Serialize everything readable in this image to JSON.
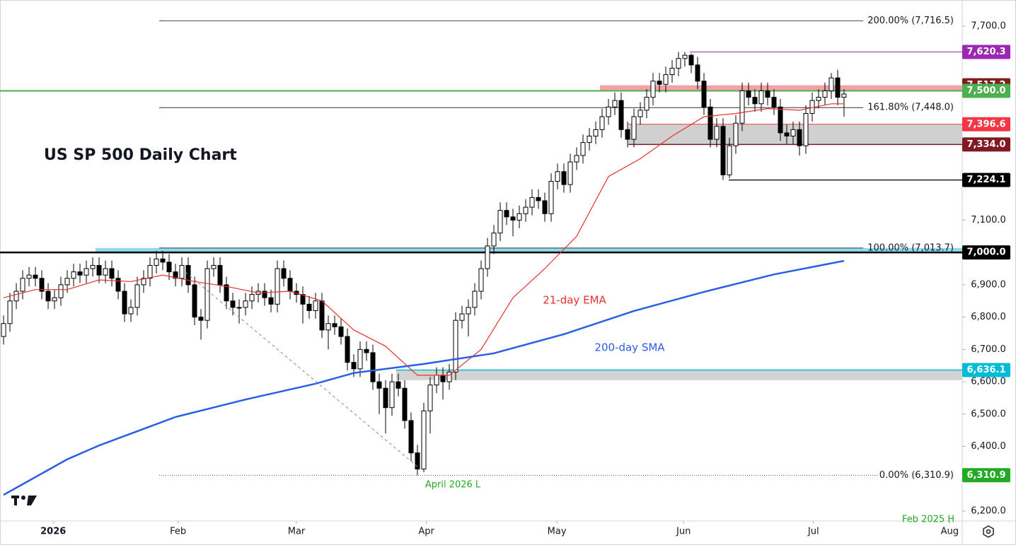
{
  "chart_data": {
    "type": "candlestick",
    "title": "US SP 500 Daily Chart",
    "up_color": "#ffffff",
    "down_color": "#000000",
    "open": [
      6740,
      6780,
      6850,
      6880,
      6920,
      6930,
      6920,
      6880,
      6850,
      6860,
      6900,
      6920,
      6940,
      6930,
      6950,
      6960,
      6930,
      6950,
      6920,
      6880,
      6810,
      6830,
      6900,
      6920,
      6960,
      6980,
      6970,
      6940,
      6920,
      6960,
      6900,
      6800,
      6790,
      6950,
      6960,
      6900,
      6850,
      6830,
      6830,
      6850,
      6870,
      6880,
      6860,
      6840,
      6950,
      6920,
      6880,
      6870,
      6840,
      6820,
      6850,
      6760,
      6780,
      6770,
      6740,
      6660,
      6640,
      6700,
      6690,
      6600,
      6580,
      6520,
      6600,
      6580,
      6480,
      6380,
      6330,
      6510,
      6590,
      6620,
      6600,
      6630,
      6790,
      6810,
      6830,
      6880,
      6950,
      7020,
      7060,
      7130,
      7110,
      7100,
      7120,
      7140,
      7170,
      7160,
      7120,
      7220,
      7250,
      7210,
      7280,
      7300,
      7340,
      7360,
      7380,
      7420,
      7450,
      7470,
      7380,
      7350,
      7420,
      7440,
      7480,
      7530,
      7520,
      7550,
      7570,
      7600,
      7610,
      7580,
      7530,
      7450,
      7350,
      7390,
      7240,
      7330,
      7400,
      7500,
      7480,
      7460,
      7500,
      7480,
      7450,
      7370,
      7360,
      7380,
      7330,
      7430,
      7470,
      7480,
      7500,
      7540,
      7480
    ],
    "high": [
      6805,
      6875,
      6905,
      6945,
      6955,
      6955,
      6945,
      6905,
      6885,
      6925,
      6945,
      6965,
      6965,
      6975,
      6985,
      6985,
      6975,
      6975,
      6945,
      6905,
      6855,
      6925,
      6945,
      6985,
      7005,
      7005,
      6995,
      6965,
      6985,
      6985,
      6925,
      6825,
      6975,
      6985,
      6985,
      6925,
      6875,
      6855,
      6875,
      6895,
      6905,
      6905,
      6885,
      6975,
      6975,
      6945,
      6905,
      6895,
      6865,
      6875,
      6875,
      6805,
      6805,
      6795,
      6765,
      6685,
      6725,
      6725,
      6715,
      6625,
      6605,
      6625,
      6625,
      6605,
      6505,
      6405,
      6535,
      6615,
      6645,
      6645,
      6655,
      6815,
      6835,
      6855,
      6905,
      6975,
      7045,
      7085,
      7155,
      7155,
      7135,
      7145,
      7165,
      7195,
      7195,
      7185,
      7245,
      7275,
      7275,
      7305,
      7325,
      7365,
      7385,
      7405,
      7445,
      7475,
      7495,
      7495,
      7405,
      7445,
      7465,
      7505,
      7555,
      7555,
      7575,
      7595,
      7620,
      7620.3,
      7615,
      7605,
      7555,
      7475,
      7415,
      7415,
      7355,
      7425,
      7525,
      7525,
      7505,
      7525,
      7525,
      7505,
      7475,
      7395,
      7405,
      7405,
      7455,
      7495,
      7505,
      7525,
      7555,
      7565,
      7505
    ],
    "low": [
      6715,
      6755,
      6825,
      6855,
      6895,
      6895,
      6855,
      6825,
      6825,
      6835,
      6875,
      6895,
      6905,
      6905,
      6925,
      6905,
      6905,
      6895,
      6855,
      6785,
      6785,
      6805,
      6875,
      6895,
      6935,
      6945,
      6915,
      6895,
      6895,
      6875,
      6775,
      6730,
      6765,
      6925,
      6875,
      6825,
      6805,
      6780,
      6805,
      6825,
      6845,
      6835,
      6815,
      6815,
      6895,
      6855,
      6845,
      6780,
      6795,
      6795,
      6735,
      6700,
      6745,
      6715,
      6635,
      6615,
      6615,
      6665,
      6575,
      6500,
      6440,
      6495,
      6555,
      6455,
      6355,
      6310.9,
      6320,
      6440,
      6565,
      6545,
      6575,
      6605,
      6765,
      6740,
      6805,
      6855,
      6925,
      6995,
      7035,
      7085,
      7050,
      7075,
      7095,
      7115,
      7135,
      7095,
      7095,
      7195,
      7185,
      7185,
      7255,
      7275,
      7315,
      7335,
      7355,
      7395,
      7425,
      7355,
      7325,
      7325,
      7395,
      7415,
      7455,
      7495,
      7495,
      7525,
      7545,
      7575,
      7555,
      7505,
      7425,
      7325,
      7325,
      7224.1,
      7230,
      7305,
      7375,
      7455,
      7435,
      7435,
      7455,
      7425,
      7345,
      7335,
      7335,
      7300,
      7305,
      7405,
      7445,
      7455,
      7475,
      7455,
      7420
    ],
    "close": [
      6780,
      6850,
      6880,
      6920,
      6930,
      6920,
      6880,
      6850,
      6860,
      6900,
      6920,
      6940,
      6930,
      6950,
      6960,
      6930,
      6950,
      6920,
      6880,
      6810,
      6830,
      6900,
      6920,
      6960,
      6980,
      6970,
      6940,
      6920,
      6960,
      6900,
      6800,
      6790,
      6950,
      6960,
      6900,
      6850,
      6830,
      6830,
      6850,
      6870,
      6880,
      6860,
      6840,
      6950,
      6920,
      6880,
      6870,
      6840,
      6820,
      6850,
      6760,
      6780,
      6770,
      6740,
      6660,
      6640,
      6700,
      6690,
      6600,
      6580,
      6520,
      6600,
      6580,
      6480,
      6380,
      6330,
      6510,
      6590,
      6620,
      6600,
      6630,
      6790,
      6810,
      6830,
      6880,
      6950,
      7020,
      7060,
      7130,
      7110,
      7100,
      7120,
      7140,
      7170,
      7160,
      7120,
      7220,
      7250,
      7210,
      7280,
      7300,
      7340,
      7360,
      7380,
      7420,
      7450,
      7470,
      7380,
      7350,
      7420,
      7440,
      7480,
      7530,
      7520,
      7550,
      7570,
      7600,
      7610,
      7580,
      7530,
      7450,
      7350,
      7390,
      7240,
      7330,
      7400,
      7500,
      7480,
      7460,
      7500,
      7480,
      7450,
      7370,
      7360,
      7380,
      7330,
      7430,
      7470,
      7480,
      7500,
      7540,
      7480,
      7490
    ],
    "lines": [
      {
        "name": "21-day EMA",
        "color": "#e8302a",
        "x": [
          0,
          5,
          10,
          15,
          20,
          25,
          30,
          35,
          40,
          45,
          50,
          55,
          60,
          65,
          70,
          75,
          80,
          85,
          90,
          95,
          100,
          105,
          110,
          115,
          120,
          125,
          130,
          132
        ],
        "values": [
          6860,
          6885,
          6885,
          6915,
          6910,
          6930,
          6910,
          6895,
          6875,
          6880,
          6850,
          6760,
          6710,
          6620,
          6620,
          6700,
          6860,
          6950,
          7050,
          7235,
          7290,
          7360,
          7420,
          7430,
          7445,
          7440,
          7460,
          7460
        ]
      },
      {
        "name": "200-day SMA",
        "color": "#2a5ee8",
        "x": [
          0,
          10,
          15,
          27,
          38,
          49,
          55,
          66,
          77,
          88,
          99,
          110,
          121,
          132
        ],
        "values": [
          6250,
          6360,
          6403,
          6491,
          6545,
          6594,
          6627,
          6655,
          6688,
          6747,
          6819,
          6878,
          6932,
          6974
        ]
      }
    ],
    "levels": [
      {
        "value": 7620.3,
        "label": "7,620.3",
        "color": "#9c27b0"
      },
      {
        "value": 7517.2,
        "label": "7,517.2",
        "color": "#7f1d1d"
      },
      {
        "value": 7500.0,
        "label": "7,500.0",
        "color": "#4caf50"
      },
      {
        "value": 7396.6,
        "label": "7,396.6",
        "color": "#f23645"
      },
      {
        "value": 7334.0,
        "label": "7,334.0",
        "color": "#801922"
      },
      {
        "value": 7224.1,
        "label": "7,224.1",
        "color": "#000000"
      },
      {
        "value": 7000.0,
        "label": "7,000.0",
        "color": "#000000"
      },
      {
        "value": 6636.1,
        "label": "6,636.1",
        "color": "#00bcd4"
      },
      {
        "value": 6310.9,
        "label": "6,310.9",
        "color": "#22ab22"
      }
    ],
    "fib_levels": [
      {
        "value": 7716.5,
        "label": "200.00% (7,716.5)"
      },
      {
        "value": 7448.0,
        "label": "161.80% (7,448.0)"
      },
      {
        "value": 7013.7,
        "label": "100.00% (7,013.7)"
      },
      {
        "value": 6310.9,
        "label": "0.00% (6,310.9)"
      }
    ],
    "zones": [
      {
        "top": 7517.2,
        "bottom": 7500.0,
        "color": "#f3a0a6"
      },
      {
        "top": 7396.6,
        "bottom": 7334.0,
        "color": "#d0d0d0"
      },
      {
        "top": 7013.7,
        "bottom": 7000.0,
        "color": "#8fd9ea"
      },
      {
        "top": 6636.1,
        "bottom": 6605.0,
        "color": "#d3d3d3"
      }
    ],
    "annotations": [
      "April 2026 L",
      "Feb 2025 H"
    ],
    "xlim": [
      -0.56,
      150.56
    ],
    "xticks": [
      {
        "value": 7.8,
        "label": "2026"
      },
      {
        "value": 27.4,
        "label": "Feb"
      },
      {
        "value": 46,
        "label": "Mar"
      },
      {
        "value": 66.4,
        "label": "Apr"
      },
      {
        "value": 86.9,
        "label": "May"
      },
      {
        "value": 106.8,
        "label": "Jun"
      },
      {
        "value": 127.2,
        "label": "Jul"
      },
      {
        "value": 148.6,
        "label": "Aug"
      }
    ],
    "ylim": [
      6169.4,
      7780.9
    ],
    "yticks": [
      {
        "value": 7700,
        "label": "7,700.0"
      },
      {
        "value": 7100,
        "label": "7,100.0"
      },
      {
        "value": 6900,
        "label": "6,900.0"
      },
      {
        "value": 6800,
        "label": "6,800.0"
      },
      {
        "value": 6700,
        "label": "6,700.0"
      },
      {
        "value": 6600,
        "label": "6,600.0"
      },
      {
        "value": 6500,
        "label": "6,500.0"
      },
      {
        "value": 6400,
        "label": "6,400.0"
      },
      {
        "value": 6200,
        "label": "6,200.0"
      }
    ]
  }
}
